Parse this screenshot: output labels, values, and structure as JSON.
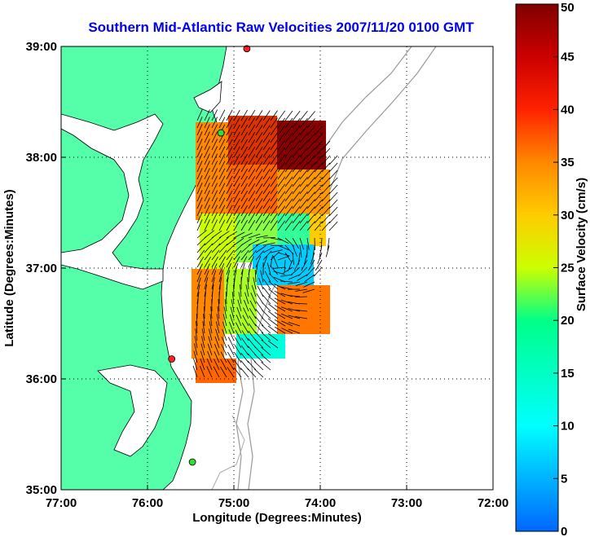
{
  "title": "Southern Mid-Atlantic Raw Velocities 2007/11/20 0100 GMT",
  "map": {
    "x_axis": {
      "label": "Longitude (Degrees:Minutes)",
      "range": [
        77,
        72
      ],
      "ticks": [
        {
          "value": 77,
          "label": "77:00"
        },
        {
          "value": 76,
          "label": "76:00"
        },
        {
          "value": 75,
          "label": "75:00"
        },
        {
          "value": 74,
          "label": "74:00"
        },
        {
          "value": 73,
          "label": "73:00"
        },
        {
          "value": 72,
          "label": "72:00"
        }
      ]
    },
    "y_axis": {
      "label": "Latitude (Degrees:Minutes)",
      "range": [
        35,
        39
      ],
      "ticks": [
        {
          "value": 39,
          "label": "39:00"
        },
        {
          "value": 38,
          "label": "38:00"
        },
        {
          "value": 37,
          "label": "37:00"
        },
        {
          "value": 36,
          "label": "36:00"
        },
        {
          "value": 35,
          "label": "35:00"
        }
      ]
    },
    "grid": "dotted",
    "land_color": "#55ffaa",
    "water_color": "#ffffff",
    "stations": [
      {
        "lon": 74.85,
        "lat": 38.98,
        "color": "#ff2020"
      },
      {
        "lon": 75.15,
        "lat": 38.22,
        "color": "#33dd33"
      },
      {
        "lon": 75.72,
        "lat": 36.18,
        "color": "#ff2020"
      },
      {
        "lon": 75.48,
        "lat": 35.25,
        "color": "#33dd33"
      }
    ]
  },
  "colorbar": {
    "label": "Surface Velocity (cm/s)",
    "min": 0,
    "max": 50,
    "ticks": [
      {
        "value": 50,
        "label": "50"
      },
      {
        "value": 45,
        "label": "45"
      },
      {
        "value": 40,
        "label": "40"
      },
      {
        "value": 35,
        "label": "35"
      },
      {
        "value": 30,
        "label": "30"
      },
      {
        "value": 25,
        "label": "25"
      },
      {
        "value": 20,
        "label": "20"
      },
      {
        "value": 15,
        "label": "15"
      },
      {
        "value": 10,
        "label": "10"
      },
      {
        "value": 5,
        "label": "5"
      },
      {
        "value": 0,
        "label": "0"
      }
    ]
  }
}
